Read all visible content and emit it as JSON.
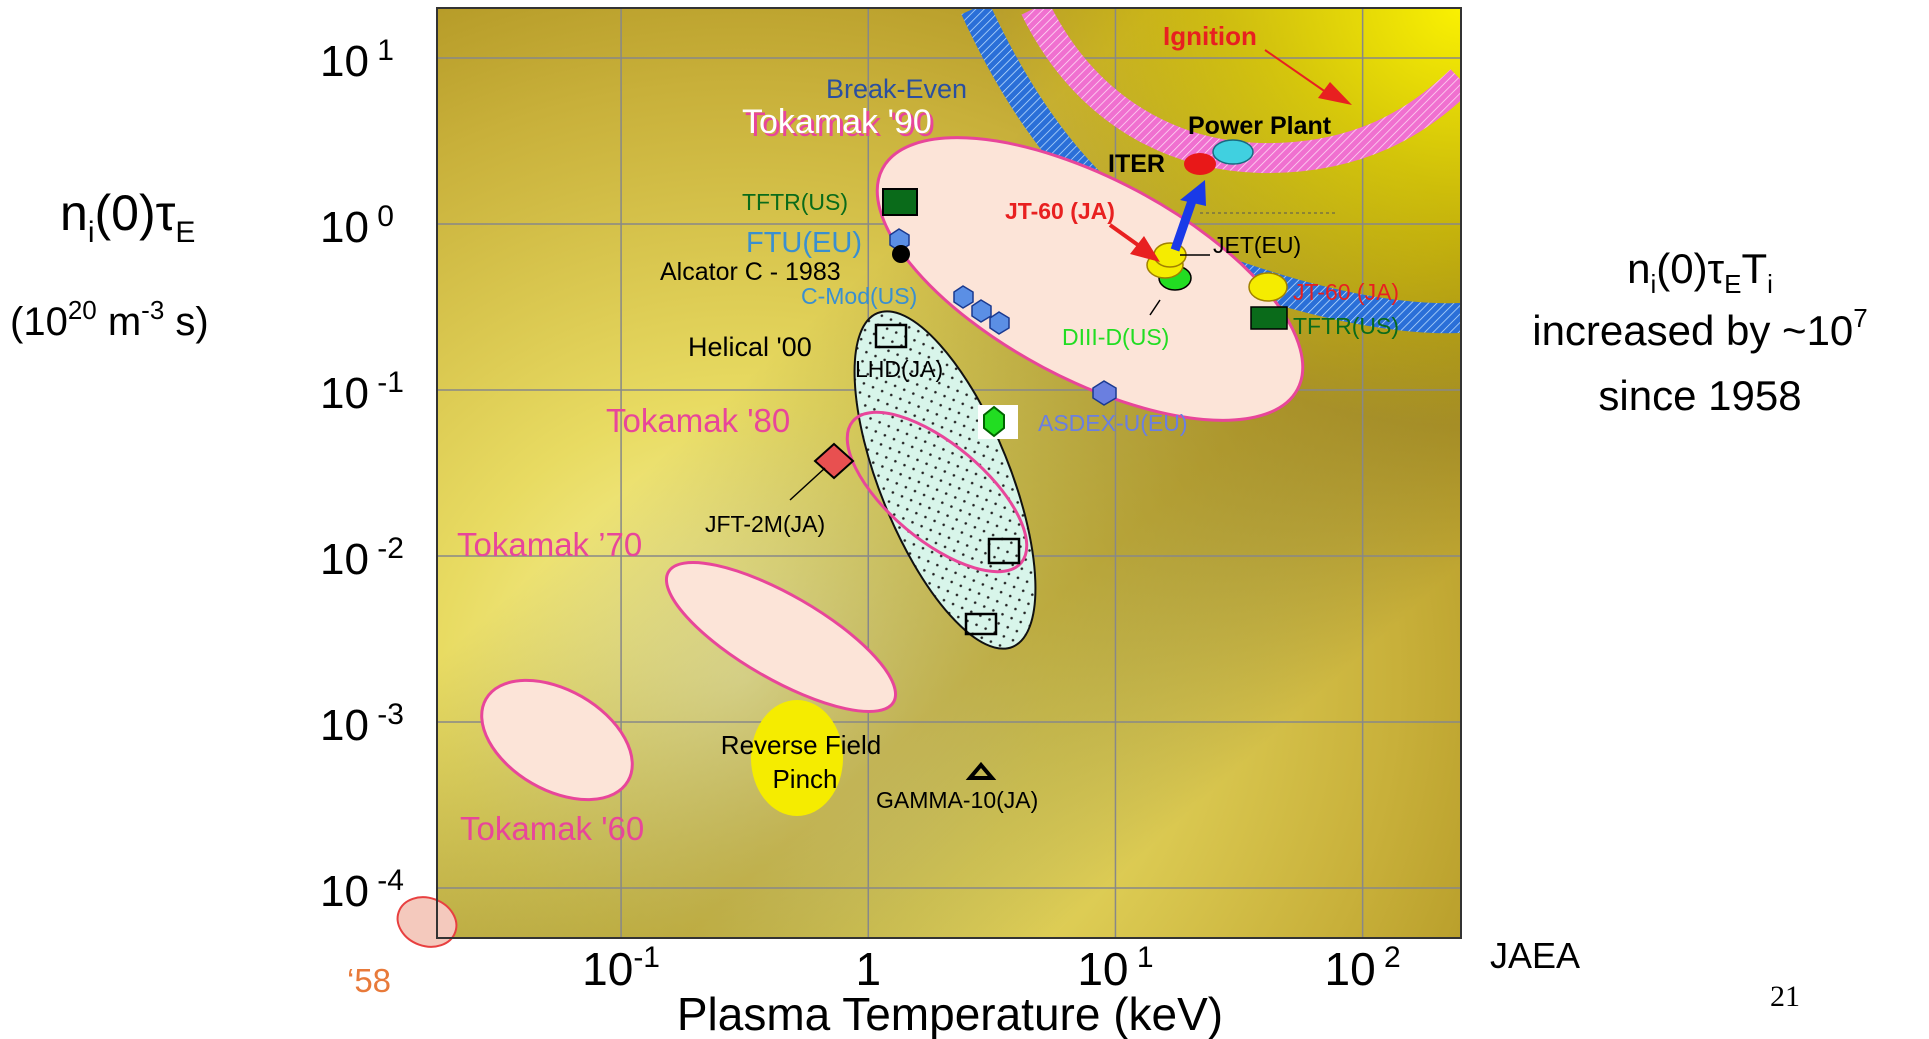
{
  "chart_data": {
    "type": "scatter",
    "xlabel": "Plasma  Temperature (keV)",
    "ylabel_line1": "n",
    "ylabel_sub": "i",
    "ylabel_mid": "(0)τ",
    "ylabel_sub2": "E",
    "ylabel_units": "(10",
    "ylabel_units_exp": "20",
    "ylabel_units_rest": " m",
    "ylabel_units_exp2": "-3",
    "ylabel_units_end": " s)",
    "x_scale": "log",
    "y_scale": "log",
    "xlim": [
      0.018,
      250
    ],
    "ylim": [
      5e-05,
      20
    ],
    "x_tick_labels": [
      {
        "value": 0.1,
        "base": "10",
        "exp": "-1"
      },
      {
        "value": 1,
        "base": "1",
        "exp": ""
      },
      {
        "value": 10,
        "base": "10",
        "exp": " 1"
      },
      {
        "value": 100,
        "base": "10",
        "exp": " 2"
      }
    ],
    "y_tick_labels": [
      {
        "value": 10,
        "base": "10",
        "exp": " 1"
      },
      {
        "value": 1,
        "base": "10",
        "exp": " 0"
      },
      {
        "value": 0.1,
        "base": "10",
        "exp": " -1"
      },
      {
        "value": 0.01,
        "base": "10",
        "exp": " -2"
      },
      {
        "value": 0.001,
        "base": "10",
        "exp": " -3"
      },
      {
        "value": 0.0001,
        "base": "10",
        "exp": " -4"
      }
    ],
    "grid": true,
    "regions": [
      {
        "name": "Tokamak '60",
        "label": "Tokamak '60",
        "color": "#e8469a"
      },
      {
        "name": "Tokamak '70",
        "label": "Tokamak ’70",
        "color": "#e8469a"
      },
      {
        "name": "Tokamak '80",
        "label": "Tokamak '80",
        "color": "#e8469a"
      },
      {
        "name": "Tokamak '90",
        "label": "Tokamak '90",
        "color": "#e8469a"
      },
      {
        "name": "Helical '00",
        "label": "Helical '00",
        "color": "#000000"
      },
      {
        "name": "Reverse Field Pinch",
        "label_line1": "Reverse Field",
        "label_line2": "Pinch",
        "color": "#f5ec00"
      },
      {
        "name": "'58",
        "label": "‘58",
        "color": "#e87a4a"
      }
    ],
    "points": [
      {
        "label": "TFTR(US)",
        "x": 1.25,
        "y": 1.25,
        "marker": "square-green",
        "color": "#0a6b1a"
      },
      {
        "label": "FTU(EU)",
        "x": 1.25,
        "y": 0.75,
        "marker": "hexagon-blue",
        "color": "#3a8fd0"
      },
      {
        "label": "Alcator C - 1983",
        "x": 1.3,
        "y": 0.6,
        "marker": "dot-black",
        "color": "#000000"
      },
      {
        "label": "C-Mod(US)",
        "x": 2.7,
        "y": 0.3,
        "marker": "hexagon-blue",
        "color": "#3a8fd0"
      },
      {
        "label": "LHD(JA)",
        "x": 1.25,
        "y": 0.19,
        "marker": "open-square",
        "color": "#000000"
      },
      {
        "label": "",
        "x": 3.2,
        "y": 0.06,
        "marker": "hexagon-green",
        "color": "#22dd22"
      },
      {
        "label": "ASDEX-U(EU)",
        "x": 9.5,
        "y": 0.09,
        "marker": "hexagon-blue",
        "color": "#6a7fe0"
      },
      {
        "label": "JFT-2M(JA)",
        "x": 0.68,
        "y": 0.033,
        "marker": "diamond-red",
        "color": "#e85050"
      },
      {
        "label": "",
        "x": 3.3,
        "y": 0.0095,
        "marker": "open-square",
        "color": "#000000"
      },
      {
        "label": "",
        "x": 2.8,
        "y": 0.0035,
        "marker": "open-square",
        "color": "#000000"
      },
      {
        "label": "GAMMA-10(JA)",
        "x": 2.8,
        "y": 0.0004,
        "marker": "triangle-open",
        "color": "#000000"
      },
      {
        "label": "JT-60 (JA)",
        "x": 16,
        "y": 0.55,
        "marker": "ellipse-yellow",
        "color": "#f5ec00"
      },
      {
        "label": "JET(EU)",
        "x": 18,
        "y": 0.5,
        "marker": "ellipse-yellow",
        "color": "#f5ec00"
      },
      {
        "label": "DIII-D(US)",
        "x": 17,
        "y": 0.42,
        "marker": "ellipse-green",
        "color": "#22dd22"
      },
      {
        "label": "JT-60 (JA)",
        "x": 45,
        "y": 0.38,
        "marker": "ellipse-yellow",
        "color": "#f5ec00"
      },
      {
        "label": "TFTR(US)",
        "x": 42,
        "y": 0.24,
        "marker": "square-green",
        "color": "#0a6b1a"
      },
      {
        "label": "ITER",
        "x": 21,
        "y": 2.2,
        "marker": "ellipse-red",
        "color": "#e81818"
      },
      {
        "label": "Power Plant",
        "x": 28,
        "y": 2.6,
        "marker": "ellipse-cyan",
        "color": "#40d0e0"
      }
    ],
    "bands": [
      {
        "name": "Break-Even",
        "label": "Break-Even",
        "color": "#2a6fd8"
      },
      {
        "name": "Ignition",
        "label": "Ignition",
        "color": "#f070d0",
        "label_color": "#e82020"
      }
    ],
    "annotations": [
      {
        "text": "n",
        "sub": "i",
        "mid": "(0)τ",
        "sub2": "E",
        "mid2": "T",
        "sub3": "i"
      },
      {
        "text": "increased by ~10",
        "exp": "7"
      },
      {
        "text": "since  1958"
      }
    ]
  },
  "footer": {
    "source": "JAEA",
    "page_number": "21"
  }
}
